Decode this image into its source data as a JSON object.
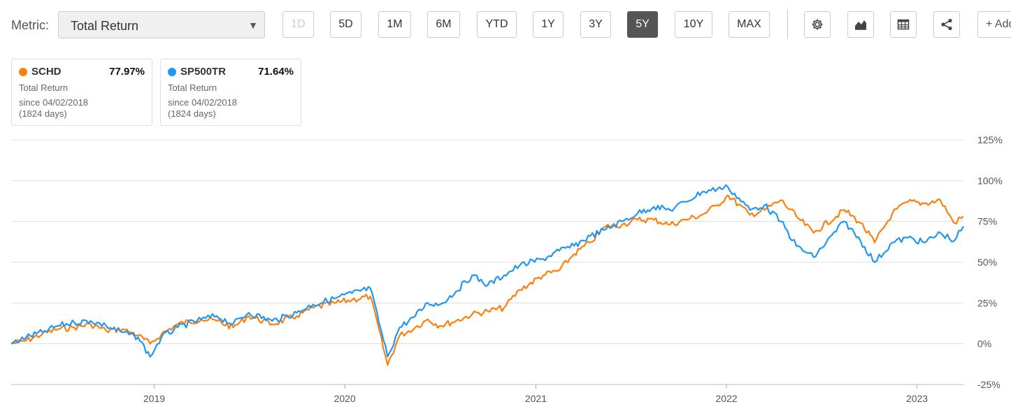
{
  "toolbar": {
    "metric_label": "Metric:",
    "metric_value": "Total Return",
    "ranges": [
      "1D",
      "5D",
      "1M",
      "6M",
      "YTD",
      "1Y",
      "3Y",
      "5Y",
      "10Y",
      "MAX"
    ],
    "active_range": "5Y",
    "disabled_range": "1D",
    "icons": [
      "gear-icon",
      "chart-type-icon",
      "table-icon",
      "share-icon"
    ],
    "add_label": "+ Add"
  },
  "legend_cards": [
    {
      "name": "SCHD",
      "value": "77.97%",
      "metric": "Total Return",
      "since": "since 04/02/2018",
      "days": "(1824 days)",
      "color": "#ff7f0e"
    },
    {
      "name": "SP500TR",
      "value": "71.64%",
      "metric": "Total Return",
      "since": "since 04/02/2018",
      "days": "(1824 days)",
      "color": "#2196f3"
    }
  ],
  "chart_data": {
    "type": "line",
    "ylim": [
      -25,
      125
    ],
    "y_ticks": [
      125,
      100,
      75,
      50,
      25,
      0,
      -25
    ],
    "y_tick_labels": [
      "125%",
      "100%",
      "75%",
      "50%",
      "25%",
      "0%",
      "-25%"
    ],
    "x_range": [
      "2018-04-02",
      "2023-03-31"
    ],
    "x_ticks": [
      "2019-01-01",
      "2020-01-01",
      "2021-01-01",
      "2022-01-01",
      "2023-01-01"
    ],
    "x_tick_labels": [
      "2019",
      "2020",
      "2021",
      "2022",
      "2023"
    ],
    "grid": "horizontal",
    "series": [
      {
        "name": "SCHD",
        "color": "#ff7f0e",
        "points": [
          [
            "2018-04-02",
            0
          ],
          [
            "2018-05-01",
            2
          ],
          [
            "2018-06-01",
            6
          ],
          [
            "2018-07-01",
            9
          ],
          [
            "2018-08-01",
            10
          ],
          [
            "2018-09-01",
            12
          ],
          [
            "2018-10-01",
            8
          ],
          [
            "2018-11-01",
            9
          ],
          [
            "2018-12-01",
            5
          ],
          [
            "2018-12-24",
            0
          ],
          [
            "2019-01-15",
            6
          ],
          [
            "2019-02-15",
            12
          ],
          [
            "2019-04-01",
            15
          ],
          [
            "2019-05-01",
            14
          ],
          [
            "2019-06-01",
            10
          ],
          [
            "2019-07-01",
            17
          ],
          [
            "2019-08-15",
            12
          ],
          [
            "2019-10-01",
            17
          ],
          [
            "2019-11-01",
            22
          ],
          [
            "2019-12-15",
            25
          ],
          [
            "2020-01-15",
            27
          ],
          [
            "2020-02-19",
            29
          ],
          [
            "2020-03-23",
            -13
          ],
          [
            "2020-04-15",
            5
          ],
          [
            "2020-05-15",
            10
          ],
          [
            "2020-06-08",
            15
          ],
          [
            "2020-07-01",
            11
          ],
          [
            "2020-08-01",
            14
          ],
          [
            "2020-09-01",
            18
          ],
          [
            "2020-10-01",
            20
          ],
          [
            "2020-11-01",
            22
          ],
          [
            "2020-12-01",
            33
          ],
          [
            "2021-01-15",
            42
          ],
          [
            "2021-02-15",
            45
          ],
          [
            "2021-03-15",
            55
          ],
          [
            "2021-04-15",
            62
          ],
          [
            "2021-05-15",
            72
          ],
          [
            "2021-06-15",
            73
          ],
          [
            "2021-07-15",
            76
          ],
          [
            "2021-08-15",
            76
          ],
          [
            "2021-09-15",
            73
          ],
          [
            "2021-10-15",
            76
          ],
          [
            "2021-11-15",
            79
          ],
          [
            "2021-12-15",
            85
          ],
          [
            "2022-01-04",
            91
          ],
          [
            "2022-02-15",
            79
          ],
          [
            "2022-03-15",
            82
          ],
          [
            "2022-04-15",
            88
          ],
          [
            "2022-05-15",
            78
          ],
          [
            "2022-06-17",
            68
          ],
          [
            "2022-08-15",
            82
          ],
          [
            "2022-09-15",
            74
          ],
          [
            "2022-10-12",
            62
          ],
          [
            "2022-11-15",
            80
          ],
          [
            "2022-12-15",
            87
          ],
          [
            "2023-01-15",
            86
          ],
          [
            "2023-02-15",
            88
          ],
          [
            "2023-03-13",
            74
          ],
          [
            "2023-03-31",
            78
          ]
        ]
      },
      {
        "name": "SP500TR",
        "color": "#2196f3",
        "points": [
          [
            "2018-04-02",
            0
          ],
          [
            "2018-05-01",
            4
          ],
          [
            "2018-06-01",
            7
          ],
          [
            "2018-07-01",
            11
          ],
          [
            "2018-08-01",
            13
          ],
          [
            "2018-09-01",
            14
          ],
          [
            "2018-10-01",
            11
          ],
          [
            "2018-11-01",
            7
          ],
          [
            "2018-12-01",
            4
          ],
          [
            "2018-12-24",
            -8
          ],
          [
            "2019-01-15",
            4
          ],
          [
            "2019-02-15",
            10
          ],
          [
            "2019-04-01",
            15
          ],
          [
            "2019-05-01",
            17
          ],
          [
            "2019-06-01",
            12
          ],
          [
            "2019-07-01",
            19
          ],
          [
            "2019-08-15",
            14
          ],
          [
            "2019-10-01",
            19
          ],
          [
            "2019-11-01",
            24
          ],
          [
            "2019-12-15",
            28
          ],
          [
            "2020-01-15",
            31
          ],
          [
            "2020-02-19",
            34
          ],
          [
            "2020-03-23",
            -8
          ],
          [
            "2020-04-15",
            10
          ],
          [
            "2020-05-15",
            17
          ],
          [
            "2020-06-08",
            25
          ],
          [
            "2020-07-01",
            24
          ],
          [
            "2020-08-01",
            32
          ],
          [
            "2020-09-01",
            42
          ],
          [
            "2020-10-01",
            36
          ],
          [
            "2020-11-01",
            42
          ],
          [
            "2020-12-01",
            48
          ],
          [
            "2021-01-15",
            52
          ],
          [
            "2021-02-15",
            57
          ],
          [
            "2021-03-15",
            60
          ],
          [
            "2021-04-15",
            66
          ],
          [
            "2021-05-15",
            70
          ],
          [
            "2021-06-15",
            75
          ],
          [
            "2021-07-15",
            80
          ],
          [
            "2021-08-15",
            84
          ],
          [
            "2021-09-15",
            82
          ],
          [
            "2021-10-15",
            87
          ],
          [
            "2021-11-15",
            93
          ],
          [
            "2021-12-15",
            95
          ],
          [
            "2022-01-04",
            96
          ],
          [
            "2022-02-15",
            82
          ],
          [
            "2022-03-15",
            85
          ],
          [
            "2022-04-15",
            75
          ],
          [
            "2022-05-15",
            60
          ],
          [
            "2022-06-17",
            53
          ],
          [
            "2022-08-15",
            75
          ],
          [
            "2022-09-15",
            63
          ],
          [
            "2022-10-12",
            50
          ],
          [
            "2022-11-15",
            62
          ],
          [
            "2022-12-15",
            65
          ],
          [
            "2023-01-15",
            62
          ],
          [
            "2023-02-15",
            68
          ],
          [
            "2023-03-13",
            63
          ],
          [
            "2023-03-31",
            72
          ]
        ]
      }
    ]
  }
}
